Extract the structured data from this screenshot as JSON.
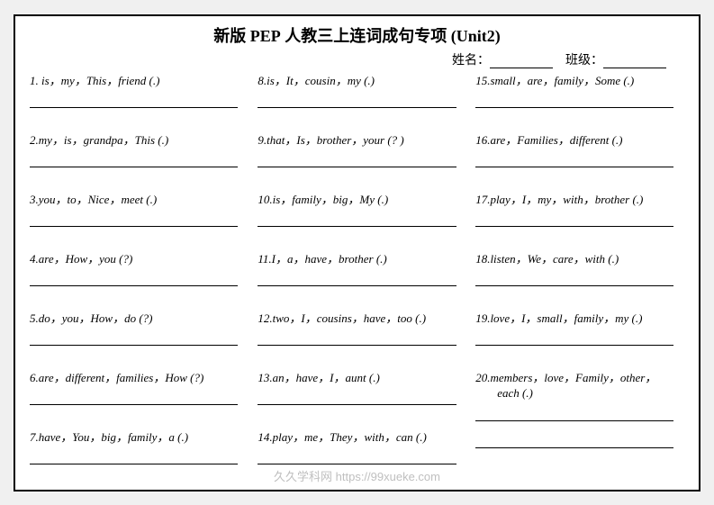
{
  "title": {
    "cn_pre": "新版",
    "pep": "PEP",
    "cn_mid": "人教三上连词成句专项",
    "unit": "(Unit2)"
  },
  "labels": {
    "name": "姓名：",
    "class": "班级："
  },
  "col1": [
    "1. is，my，This，friend (.)",
    "2.my，is，grandpa，This (.)",
    "3.you，to，Nice，meet (.)",
    "4.are，How，you (?)",
    "5.do，you，How，do (?)",
    "6.are，different，families，How (?)",
    "7.have，You，big，family，a (.)"
  ],
  "col2": [
    "8.is，It，cousin，my  (.)",
    "9.that，Is，brother，your (? )",
    "10.is，family，big，My (.)",
    "11.I，a，have，brother (.)",
    "12.two，I，cousins，have，too (.)",
    "13.an，have，I，aunt (.)",
    "14.play，me，They，with，can (.)"
  ],
  "col3": [
    "15.small，are，family，Some  (.)",
    "16.are，Families，different (.)",
    "17.play，I，my，with，brother (.)",
    "18.listen，We，care，with (.)",
    "19.love，I，small，family，my (.)"
  ],
  "q20_line1": "20.members，love，Family，other，",
  "q20_line2": "each (.)",
  "watermark": "久久学科网 https://99xueke.com"
}
